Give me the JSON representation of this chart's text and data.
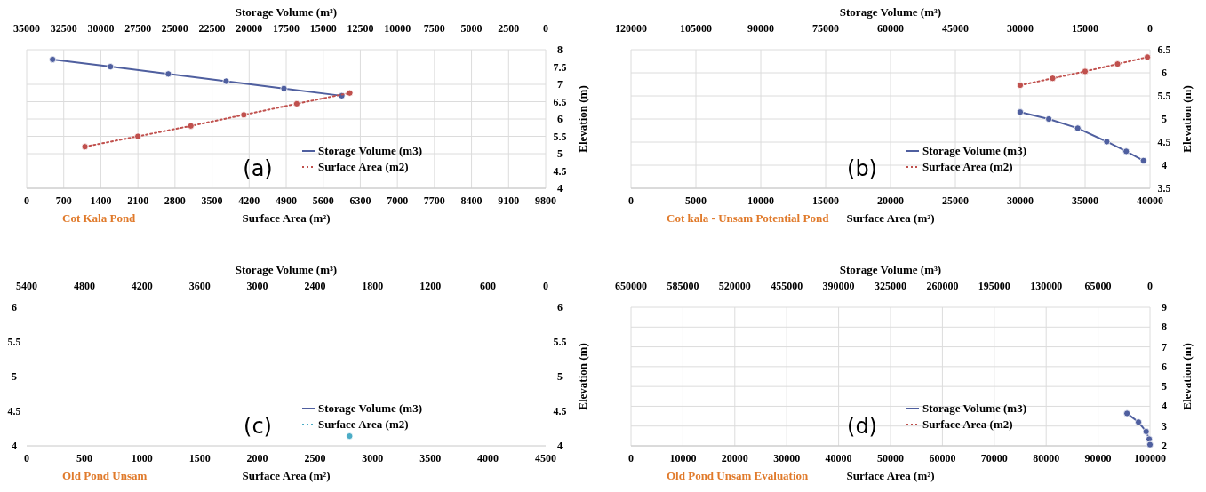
{
  "chart_data": [
    {
      "type": "line",
      "title": "Cot Kala Pond",
      "xlabel": "Surface Area (m²)",
      "x2label": "Storage Volume (m³)",
      "ylabel": "Elevation (m)",
      "annotations": [
        "(a)"
      ],
      "xlim": [
        0,
        9800
      ],
      "xticks": [
        0,
        700,
        1400,
        2100,
        2800,
        3500,
        4200,
        4900,
        5600,
        6300,
        7000,
        7700,
        8400,
        9100,
        9800
      ],
      "x2lim": [
        35000,
        0
      ],
      "x2ticks": [
        35000,
        32500,
        30000,
        27500,
        25000,
        22500,
        20000,
        17500,
        15000,
        12500,
        10000,
        7500,
        5000,
        2500,
        0
      ],
      "ylim": [
        4,
        8
      ],
      "yticks": [
        4,
        4.5,
        5,
        5.5,
        6,
        6.5,
        7,
        7.5,
        8
      ],
      "grid": true,
      "legend": "bottom right",
      "marker": "circle",
      "series": [
        {
          "name": "Storage Volume (m3)",
          "color": "#4f5f9f",
          "axis": "x2",
          "line_style": "solid",
          "x": [
            33250,
            29350,
            25450,
            21550,
            17650,
            13750
          ],
          "values": [
            7.72,
            7.51,
            7.3,
            7.09,
            6.88,
            6.67
          ]
        },
        {
          "name": "Surface Area (m2)",
          "color": "#c0504d",
          "line_style": "dotted",
          "x": [
            1100,
            2100,
            3100,
            4100,
            5100,
            6100
          ],
          "values": [
            5.2,
            5.5,
            5.8,
            6.12,
            6.44,
            6.75
          ]
        }
      ]
    },
    {
      "type": "line",
      "title": "Cot kala - Unsam Potential Pond",
      "xlabel": "Surface Area (m²)",
      "x2label": "Storage Volume (m³)",
      "ylabel": "Elevation (m)",
      "annotations": [
        "(b)"
      ],
      "xlim": [
        0,
        40000
      ],
      "xticks": [
        0,
        5000,
        10000,
        15000,
        20000,
        25000,
        30000,
        35000,
        40000
      ],
      "x2lim": [
        120000,
        0
      ],
      "x2ticks": [
        120000,
        105000,
        90000,
        75000,
        60000,
        45000,
        30000,
        15000,
        0
      ],
      "ylim": [
        3.5,
        6.5
      ],
      "yticks": [
        3.5,
        4,
        4.5,
        5,
        5.5,
        6,
        6.5
      ],
      "grid": true,
      "legend": "bottom right",
      "marker": "circle",
      "series": [
        {
          "name": "Storage Volume (m3)",
          "color": "#4f5f9f",
          "axis": "x2",
          "line_style": "solid",
          "x": [
            30000,
            23400,
            16700,
            10000,
            5500,
            1500
          ],
          "values": [
            5.15,
            5.0,
            4.8,
            4.51,
            4.3,
            4.1
          ]
        },
        {
          "name": "Surface Area (m2)",
          "color": "#c0504d",
          "line_style": "dotted",
          "x": [
            30000,
            32500,
            35000,
            37500,
            39800
          ],
          "values": [
            5.73,
            5.88,
            6.03,
            6.19,
            6.34
          ]
        }
      ]
    },
    {
      "type": "line",
      "title": "Old Pond Unsam",
      "xlabel": "Surface Area (m²)",
      "x2label": "Storage Volume (m³)",
      "y2label": "Elevation (m)",
      "annotations": [
        "(c)"
      ],
      "xlim": [
        0,
        4500
      ],
      "xticks": [
        0,
        500,
        1000,
        1500,
        2000,
        2500,
        3000,
        3500,
        4000,
        4500
      ],
      "x2lim": [
        5400,
        0
      ],
      "x2ticks": [
        5400,
        4800,
        4200,
        3600,
        3000,
        2400,
        1800,
        1200,
        600,
        0
      ],
      "ylim": [
        4,
        6
      ],
      "yticks": [
        4,
        4.5,
        5,
        5.5,
        6
      ],
      "y2lim": [
        4,
        6
      ],
      "y2ticks": [
        4,
        4.5,
        5,
        5.5,
        6
      ],
      "legend": "bottom right",
      "marker": "circle",
      "series": [
        {
          "name": "Storage Volume (m3)",
          "color": "#4f5f9f",
          "axis": "x2",
          "line_style": "solid"
        },
        {
          "name": "Surface Area (m2)",
          "color": "#4bacc6",
          "line_style": "dotted",
          "x": [
            2800
          ],
          "values": [
            4.14
          ]
        }
      ]
    },
    {
      "type": "line",
      "title": "Old Pond Unsam Evaluation",
      "xlabel": "Surface Area (m²)",
      "x2label": "Storage Volume (m³)",
      "ylabel": "Elevation (m)",
      "annotations": [
        "(d)"
      ],
      "xlim": [
        0,
        100000
      ],
      "xticks": [
        0,
        10000,
        20000,
        30000,
        40000,
        50000,
        60000,
        70000,
        80000,
        90000,
        100000
      ],
      "x2lim": [
        650000,
        0
      ],
      "x2ticks": [
        650000,
        585000,
        520000,
        455000,
        390000,
        325000,
        260000,
        195000,
        130000,
        65000,
        0
      ],
      "ylim": [
        2,
        9
      ],
      "yticks": [
        2,
        3,
        4,
        5,
        6,
        7,
        8,
        9
      ],
      "grid": true,
      "legend": "bottom right",
      "marker": "circle",
      "series": [
        {
          "name": "Storage Volume (m3)",
          "color": "#4f5f9f",
          "axis": "x2",
          "line_style": "solid",
          "x": [
            28800,
            14400,
            4800,
            1000,
            0
          ],
          "values": [
            3.64,
            3.2,
            2.72,
            2.34,
            2.06
          ]
        },
        {
          "name": "Surface Area (m2)",
          "color": "#c0504d",
          "line_style": "dotted"
        }
      ]
    }
  ]
}
